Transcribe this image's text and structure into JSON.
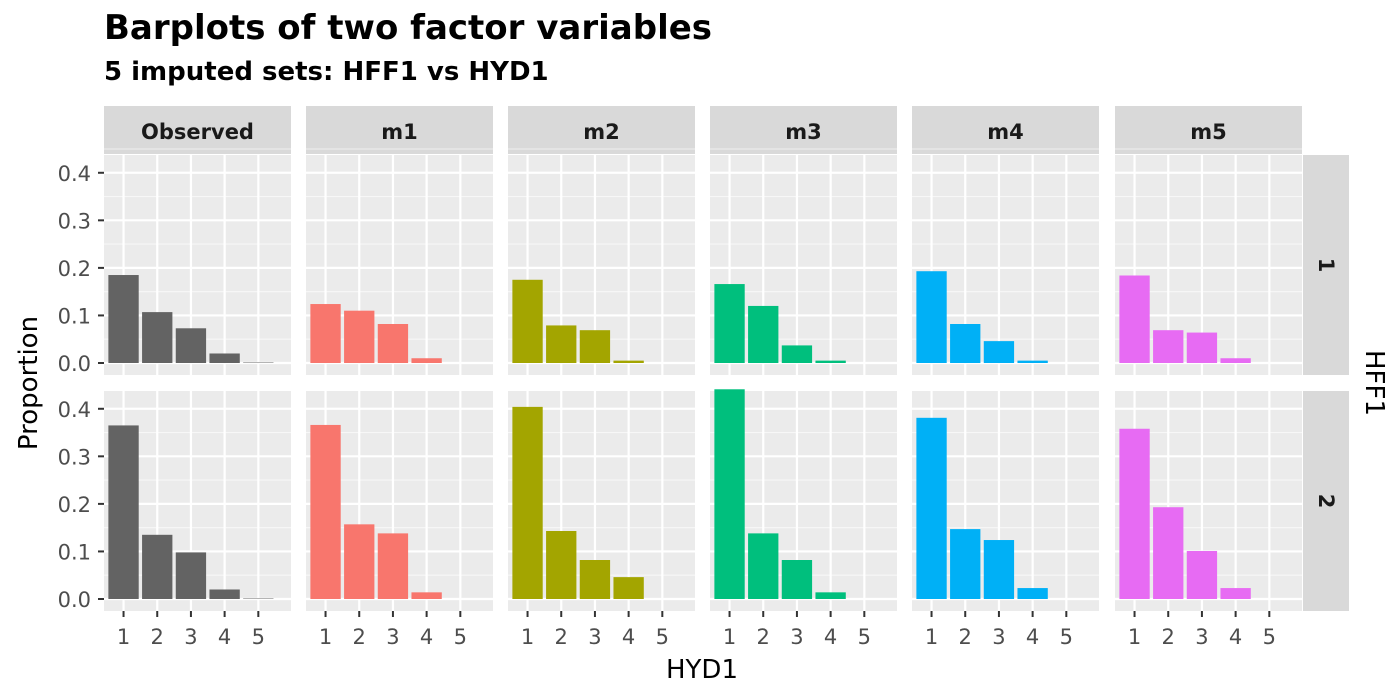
{
  "chart_data": {
    "type": "bar",
    "title": "Barplots of two factor variables",
    "subtitle": "5  imputed sets:  HFF1 vs HYD1",
    "xlabel": "HYD1",
    "ylabel": "Proportion",
    "facet_row_label": "HFF1",
    "column_facets": [
      "Observed",
      "m1",
      "m2",
      "m3",
      "m4",
      "m5"
    ],
    "row_facets": [
      "1",
      "2"
    ],
    "categories": [
      "1",
      "2",
      "3",
      "4",
      "5"
    ],
    "y_ticks": [
      "0.0",
      "0.1",
      "0.2",
      "0.3",
      "0.4"
    ],
    "ylim": [
      0,
      0.45
    ],
    "grid": true,
    "legend": "none",
    "colors": {
      "Observed": "#636363",
      "m1": "#F8766D",
      "m2": "#A3A500",
      "m3": "#00BF7D",
      "m4": "#00B0F6",
      "m5": "#E76BF3",
      "panel_bg": "#EBEBEB",
      "strip_bg": "#D9D9D9",
      "grid": "#FFFFFF"
    },
    "panels": [
      {
        "column": "Observed",
        "row": "1",
        "values": [
          0.185,
          0.107,
          0.073,
          0.02,
          0.001
        ]
      },
      {
        "column": "m1",
        "row": "1",
        "values": [
          0.124,
          0.11,
          0.082,
          0.01,
          0.0
        ]
      },
      {
        "column": "m2",
        "row": "1",
        "values": [
          0.175,
          0.079,
          0.069,
          0.005,
          0.0
        ]
      },
      {
        "column": "m3",
        "row": "1",
        "values": [
          0.166,
          0.12,
          0.037,
          0.005,
          0.0
        ]
      },
      {
        "column": "m4",
        "row": "1",
        "values": [
          0.193,
          0.082,
          0.046,
          0.005,
          0.0
        ]
      },
      {
        "column": "m5",
        "row": "1",
        "values": [
          0.184,
          0.069,
          0.064,
          0.01,
          0.0
        ]
      },
      {
        "column": "Observed",
        "row": "2",
        "values": [
          0.365,
          0.135,
          0.098,
          0.02,
          0.001
        ]
      },
      {
        "column": "m1",
        "row": "2",
        "values": [
          0.366,
          0.157,
          0.138,
          0.014,
          0.0
        ]
      },
      {
        "column": "m2",
        "row": "2",
        "values": [
          0.404,
          0.143,
          0.082,
          0.046,
          0.0
        ]
      },
      {
        "column": "m3",
        "row": "2",
        "values": [
          0.441,
          0.138,
          0.082,
          0.014,
          0.0
        ]
      },
      {
        "column": "m4",
        "row": "2",
        "values": [
          0.381,
          0.147,
          0.124,
          0.023,
          0.0
        ]
      },
      {
        "column": "m5",
        "row": "2",
        "values": [
          0.358,
          0.193,
          0.101,
          0.023,
          0.0
        ]
      }
    ]
  }
}
